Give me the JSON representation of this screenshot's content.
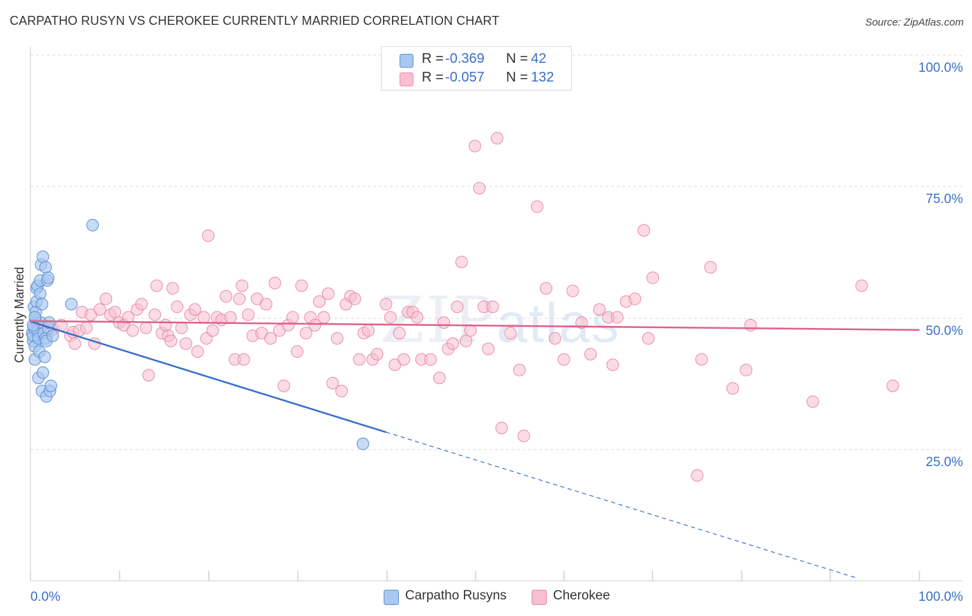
{
  "title": "CARPATHO RUSYN VS CHEROKEE CURRENTLY MARRIED CORRELATION CHART",
  "source": "Source: ZipAtlas.com",
  "watermark": {
    "zip": "ZIP",
    "atlas": "atlas"
  },
  "legend": {
    "r_label": "R =",
    "n_label": "N =",
    "rows": [
      {
        "name": "Carpatho Rusyns",
        "r": "-0.369",
        "n": "42",
        "color": "#a9c8f0",
        "border": "#5b8fd6"
      },
      {
        "name": "Cherokee",
        "r": "-0.057",
        "n": "132",
        "color": "#f7bfd0",
        "border": "#e88aa8"
      }
    ]
  },
  "chart_data": {
    "type": "scatter",
    "title": "CARPATHO RUSYN VS CHEROKEE CURRENTLY MARRIED CORRELATION CHART",
    "xlabel": "",
    "ylabel": "Currently Married",
    "xlim": [
      0,
      100
    ],
    "ylim": [
      0,
      100
    ],
    "x_tick_labels": [
      "0.0%",
      "100.0%"
    ],
    "y_ticks": [
      25,
      50,
      75,
      100
    ],
    "y_tick_labels": [
      "25.0%",
      "50.0%",
      "75.0%",
      "100.0%"
    ],
    "colors": {
      "blue": "#3a6fc8",
      "blue_fill": "#a9c8f0",
      "pink": "#e0608a",
      "pink_fill": "#f7bfd0",
      "axis_text": "#3a6fc8",
      "grid": "#d8d8d8"
    },
    "series": [
      {
        "name": "Carpatho Rusyns",
        "points": [
          [
            0.2,
            47.0
          ],
          [
            0.3,
            45.5
          ],
          [
            0.3,
            46.5
          ],
          [
            0.4,
            48.0
          ],
          [
            0.4,
            52.0
          ],
          [
            0.5,
            44.5
          ],
          [
            0.5,
            42.0
          ],
          [
            0.6,
            49.5
          ],
          [
            0.6,
            51.0
          ],
          [
            0.7,
            53.0
          ],
          [
            0.7,
            55.5
          ],
          [
            0.8,
            56.0
          ],
          [
            0.8,
            47.5
          ],
          [
            0.9,
            38.5
          ],
          [
            0.9,
            46.0
          ],
          [
            1.0,
            43.5
          ],
          [
            1.1,
            54.5
          ],
          [
            1.1,
            57.0
          ],
          [
            1.2,
            49.0
          ],
          [
            1.2,
            60.0
          ],
          [
            1.3,
            52.5
          ],
          [
            1.3,
            36.0
          ],
          [
            1.4,
            39.5
          ],
          [
            1.4,
            61.5
          ],
          [
            1.5,
            47.0
          ],
          [
            1.6,
            42.5
          ],
          [
            1.7,
            46.0
          ],
          [
            1.7,
            59.5
          ],
          [
            1.8,
            35.0
          ],
          [
            1.8,
            45.5
          ],
          [
            1.9,
            57.0
          ],
          [
            2.0,
            57.5
          ],
          [
            2.0,
            48.0
          ],
          [
            2.1,
            49.0
          ],
          [
            2.2,
            36.0
          ],
          [
            2.3,
            37.0
          ],
          [
            2.5,
            46.5
          ],
          [
            0.3,
            48.5
          ],
          [
            0.5,
            50.0
          ],
          [
            4.6,
            52.5
          ],
          [
            7.0,
            67.5
          ],
          [
            37.4,
            26.0
          ]
        ],
        "trend": {
          "x": [
            0,
            40
          ],
          "y": [
            49.2,
            28.2
          ],
          "dashed_to": [
            93,
            0.5
          ]
        }
      },
      {
        "name": "Cherokee",
        "points": [
          [
            0.5,
            47.5
          ],
          [
            1.0,
            46.5
          ],
          [
            1.5,
            48.0
          ],
          [
            2.0,
            47.0
          ],
          [
            2.6,
            47.8
          ],
          [
            3.5,
            48.5
          ],
          [
            4.5,
            46.5
          ],
          [
            4.8,
            47.2
          ],
          [
            5.0,
            45.0
          ],
          [
            5.5,
            47.5
          ],
          [
            5.8,
            51.0
          ],
          [
            6.3,
            48.0
          ],
          [
            6.8,
            50.5
          ],
          [
            7.2,
            45.0
          ],
          [
            7.8,
            51.5
          ],
          [
            8.5,
            53.5
          ],
          [
            9.0,
            50.5
          ],
          [
            9.5,
            51.0
          ],
          [
            10.0,
            49.0
          ],
          [
            10.5,
            48.5
          ],
          [
            11.0,
            50.0
          ],
          [
            11.5,
            47.5
          ],
          [
            12.0,
            51.5
          ],
          [
            12.5,
            52.5
          ],
          [
            13.0,
            48.0
          ],
          [
            13.3,
            39.0
          ],
          [
            14.0,
            50.5
          ],
          [
            14.2,
            56.0
          ],
          [
            14.8,
            47.0
          ],
          [
            15.2,
            48.5
          ],
          [
            15.5,
            46.5
          ],
          [
            15.8,
            45.5
          ],
          [
            16.0,
            55.5
          ],
          [
            16.5,
            52.0
          ],
          [
            17.0,
            48.0
          ],
          [
            17.5,
            45.0
          ],
          [
            18.0,
            50.5
          ],
          [
            18.5,
            51.5
          ],
          [
            18.8,
            43.5
          ],
          [
            19.5,
            50.0
          ],
          [
            19.8,
            46.0
          ],
          [
            20.0,
            65.5
          ],
          [
            20.5,
            47.5
          ],
          [
            21.0,
            50.0
          ],
          [
            21.5,
            49.5
          ],
          [
            22.0,
            54.0
          ],
          [
            22.5,
            50.0
          ],
          [
            23.0,
            42.0
          ],
          [
            23.5,
            53.5
          ],
          [
            23.8,
            56.0
          ],
          [
            24.0,
            42.0
          ],
          [
            24.5,
            50.5
          ],
          [
            25.0,
            46.5
          ],
          [
            25.5,
            53.5
          ],
          [
            26.0,
            47.0
          ],
          [
            26.5,
            52.5
          ],
          [
            27.0,
            46.0
          ],
          [
            27.5,
            56.5
          ],
          [
            28.0,
            47.5
          ],
          [
            28.5,
            37.0
          ],
          [
            29.0,
            48.5
          ],
          [
            29.5,
            50.0
          ],
          [
            30.0,
            43.5
          ],
          [
            30.5,
            56.0
          ],
          [
            31.0,
            47.0
          ],
          [
            31.5,
            50.0
          ],
          [
            32.0,
            48.5
          ],
          [
            32.5,
            53.0
          ],
          [
            33.0,
            50.0
          ],
          [
            33.5,
            54.5
          ],
          [
            34.0,
            37.5
          ],
          [
            34.5,
            46.0
          ],
          [
            35.0,
            36.0
          ],
          [
            35.5,
            52.5
          ],
          [
            36.0,
            54.0
          ],
          [
            36.5,
            53.5
          ],
          [
            37.0,
            42.0
          ],
          [
            37.5,
            47.0
          ],
          [
            38.0,
            47.5
          ],
          [
            38.5,
            42.0
          ],
          [
            39.0,
            43.0
          ],
          [
            40.0,
            52.5
          ],
          [
            40.5,
            50.0
          ],
          [
            41.0,
            41.0
          ],
          [
            41.5,
            47.0
          ],
          [
            42.0,
            42.0
          ],
          [
            42.5,
            51.0
          ],
          [
            43.0,
            51.0
          ],
          [
            43.5,
            50.0
          ],
          [
            44.0,
            42.0
          ],
          [
            45.0,
            42.0
          ],
          [
            46.0,
            38.5
          ],
          [
            46.5,
            49.0
          ],
          [
            47.0,
            44.0
          ],
          [
            47.5,
            45.0
          ],
          [
            48.0,
            52.0
          ],
          [
            48.5,
            60.5
          ],
          [
            49.0,
            45.5
          ],
          [
            49.5,
            47.5
          ],
          [
            50.0,
            82.5
          ],
          [
            50.5,
            74.5
          ],
          [
            51.0,
            52.0
          ],
          [
            51.5,
            44.0
          ],
          [
            52.0,
            52.0
          ],
          [
            52.5,
            84.0
          ],
          [
            53.0,
            29.0
          ],
          [
            54.0,
            47.0
          ],
          [
            55.0,
            40.0
          ],
          [
            55.5,
            27.5
          ],
          [
            57.0,
            71.0
          ],
          [
            58.0,
            55.5
          ],
          [
            59.0,
            46.0
          ],
          [
            60.0,
            42.0
          ],
          [
            61.0,
            55.0
          ],
          [
            62.0,
            49.0
          ],
          [
            63.0,
            43.0
          ],
          [
            64.0,
            51.5
          ],
          [
            65.0,
            50.0
          ],
          [
            65.5,
            41.0
          ],
          [
            66.0,
            50.0
          ],
          [
            67.0,
            53.0
          ],
          [
            68.0,
            53.5
          ],
          [
            69.0,
            66.5
          ],
          [
            69.5,
            46.0
          ],
          [
            70.0,
            57.5
          ],
          [
            75.0,
            20.0
          ],
          [
            75.5,
            42.0
          ],
          [
            76.5,
            59.5
          ],
          [
            79.0,
            36.5
          ],
          [
            80.5,
            40.0
          ],
          [
            81.0,
            48.5
          ],
          [
            88.0,
            34.0
          ],
          [
            93.5,
            56.0
          ],
          [
            97.0,
            37.0
          ]
        ],
        "trend": {
          "x": [
            0,
            100
          ],
          "y": [
            49.3,
            47.6
          ]
        }
      }
    ]
  }
}
